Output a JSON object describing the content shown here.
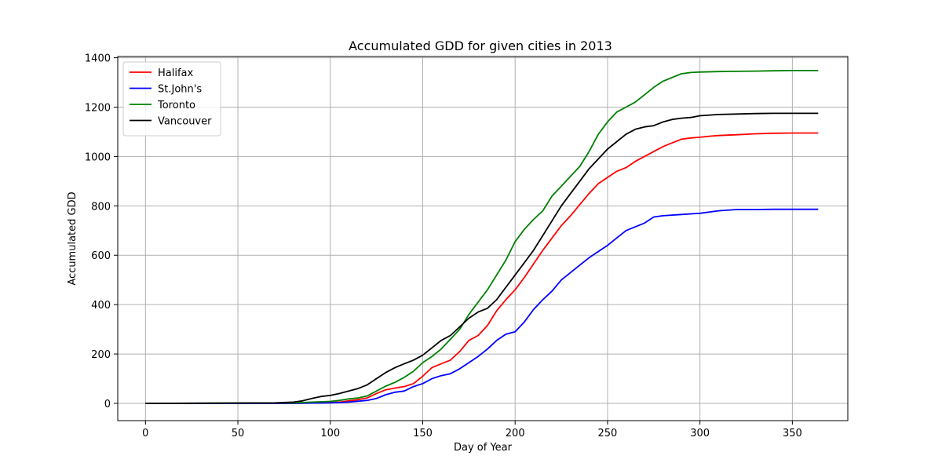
{
  "chart_data": {
    "type": "line",
    "title": "Accumulated GDD for given cities in 2013",
    "xlabel": "Day of Year",
    "ylabel": "Accumulated GDD",
    "xlim": [
      -15,
      380
    ],
    "ylim": [
      -70,
      1405
    ],
    "xticks": [
      0,
      50,
      100,
      150,
      200,
      250,
      300,
      350
    ],
    "yticks": [
      0,
      200,
      400,
      600,
      800,
      1000,
      1200,
      1400
    ],
    "grid": true,
    "legend_position": "upper-left",
    "series": [
      {
        "name": "Halifax",
        "color": "#ff0000",
        "x": [
          0,
          60,
          80,
          95,
          105,
          110,
          115,
          120,
          125,
          130,
          135,
          140,
          145,
          150,
          155,
          160,
          165,
          170,
          175,
          180,
          185,
          190,
          195,
          200,
          205,
          210,
          215,
          220,
          225,
          230,
          235,
          240,
          245,
          250,
          255,
          260,
          265,
          270,
          275,
          280,
          285,
          290,
          295,
          300,
          305,
          310,
          320,
          330,
          340,
          350,
          364
        ],
        "values": [
          0,
          0,
          0,
          2,
          5,
          10,
          15,
          22,
          40,
          55,
          62,
          68,
          80,
          110,
          145,
          160,
          175,
          210,
          255,
          275,
          315,
          375,
          420,
          460,
          510,
          565,
          620,
          670,
          720,
          760,
          805,
          850,
          890,
          915,
          940,
          955,
          980,
          1000,
          1020,
          1040,
          1055,
          1070,
          1075,
          1078,
          1082,
          1085,
          1088,
          1092,
          1094,
          1095,
          1095
        ]
      },
      {
        "name": "St.John's",
        "color": "#0000ff",
        "x": [
          0,
          80,
          100,
          110,
          120,
          125,
          130,
          135,
          140,
          145,
          150,
          155,
          160,
          165,
          170,
          175,
          180,
          185,
          190,
          195,
          200,
          205,
          210,
          215,
          220,
          225,
          230,
          235,
          240,
          245,
          250,
          255,
          260,
          265,
          270,
          275,
          280,
          290,
          300,
          310,
          320,
          330,
          340,
          350,
          364
        ],
        "values": [
          0,
          0,
          2,
          5,
          12,
          20,
          35,
          45,
          50,
          68,
          80,
          100,
          112,
          120,
          140,
          165,
          190,
          220,
          255,
          280,
          290,
          330,
          380,
          420,
          455,
          500,
          530,
          560,
          590,
          615,
          640,
          670,
          700,
          715,
          730,
          755,
          760,
          765,
          770,
          780,
          785,
          785,
          786,
          786,
          786
        ]
      },
      {
        "name": "Toronto",
        "color": "#008000",
        "x": [
          0,
          80,
          90,
          100,
          105,
          110,
          115,
          120,
          125,
          130,
          135,
          140,
          145,
          150,
          155,
          160,
          165,
          170,
          175,
          180,
          185,
          190,
          195,
          200,
          205,
          210,
          215,
          220,
          225,
          230,
          235,
          240,
          245,
          250,
          255,
          260,
          265,
          270,
          275,
          280,
          285,
          290,
          295,
          300,
          310,
          320,
          330,
          340,
          350,
          364
        ],
        "values": [
          0,
          2,
          5,
          8,
          12,
          18,
          22,
          30,
          50,
          70,
          85,
          105,
          130,
          165,
          190,
          220,
          260,
          300,
          360,
          410,
          460,
          520,
          580,
          655,
          705,
          745,
          780,
          840,
          880,
          920,
          960,
          1020,
          1090,
          1140,
          1180,
          1200,
          1220,
          1250,
          1280,
          1305,
          1320,
          1335,
          1340,
          1342,
          1344,
          1345,
          1346,
          1347,
          1348,
          1348
        ]
      },
      {
        "name": "Vancouver",
        "color": "#000000",
        "x": [
          0,
          70,
          80,
          85,
          90,
          95,
          100,
          105,
          110,
          115,
          120,
          125,
          130,
          135,
          140,
          145,
          150,
          155,
          160,
          165,
          170,
          175,
          180,
          185,
          190,
          195,
          200,
          205,
          210,
          215,
          220,
          225,
          230,
          235,
          240,
          245,
          250,
          255,
          260,
          265,
          270,
          275,
          280,
          285,
          290,
          295,
          300,
          310,
          320,
          330,
          340,
          350,
          364
        ],
        "values": [
          0,
          2,
          5,
          10,
          20,
          28,
          32,
          40,
          50,
          60,
          75,
          100,
          125,
          145,
          160,
          175,
          195,
          225,
          255,
          275,
          310,
          345,
          370,
          385,
          420,
          470,
          520,
          570,
          620,
          680,
          740,
          800,
          850,
          900,
          950,
          990,
          1030,
          1060,
          1090,
          1110,
          1120,
          1125,
          1140,
          1150,
          1155,
          1158,
          1165,
          1170,
          1172,
          1174,
          1175,
          1175,
          1175
        ]
      }
    ]
  }
}
